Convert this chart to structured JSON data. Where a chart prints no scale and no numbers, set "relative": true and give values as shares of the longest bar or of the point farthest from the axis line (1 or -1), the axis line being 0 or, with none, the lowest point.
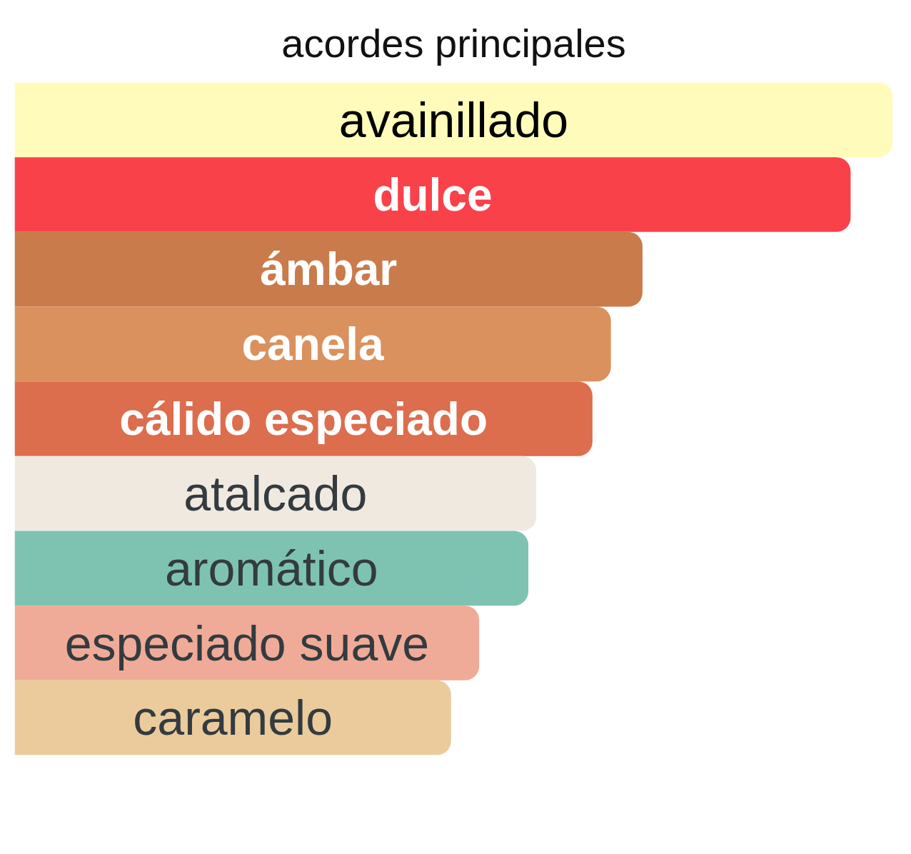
{
  "chart_data": {
    "type": "bar",
    "orientation": "horizontal",
    "relative": true,
    "title": "acordes principales",
    "categories": [
      "avainillado",
      "dulce",
      "ámbar",
      "canela",
      "cálido especiado",
      "atalcado",
      "aromático",
      "especiado suave",
      "caramelo"
    ],
    "values": [
      1,
      0.952,
      0.715,
      0.679,
      0.658,
      0.594,
      0.585,
      0.529,
      0.497
    ],
    "colors": [
      "#fffcbb",
      "#f9414a",
      "#c97b4c",
      "#da915e",
      "#dc6d4d",
      "#f0e9df",
      "#7ec3b1",
      "#efab97",
      "#ebcb9c"
    ]
  }
}
